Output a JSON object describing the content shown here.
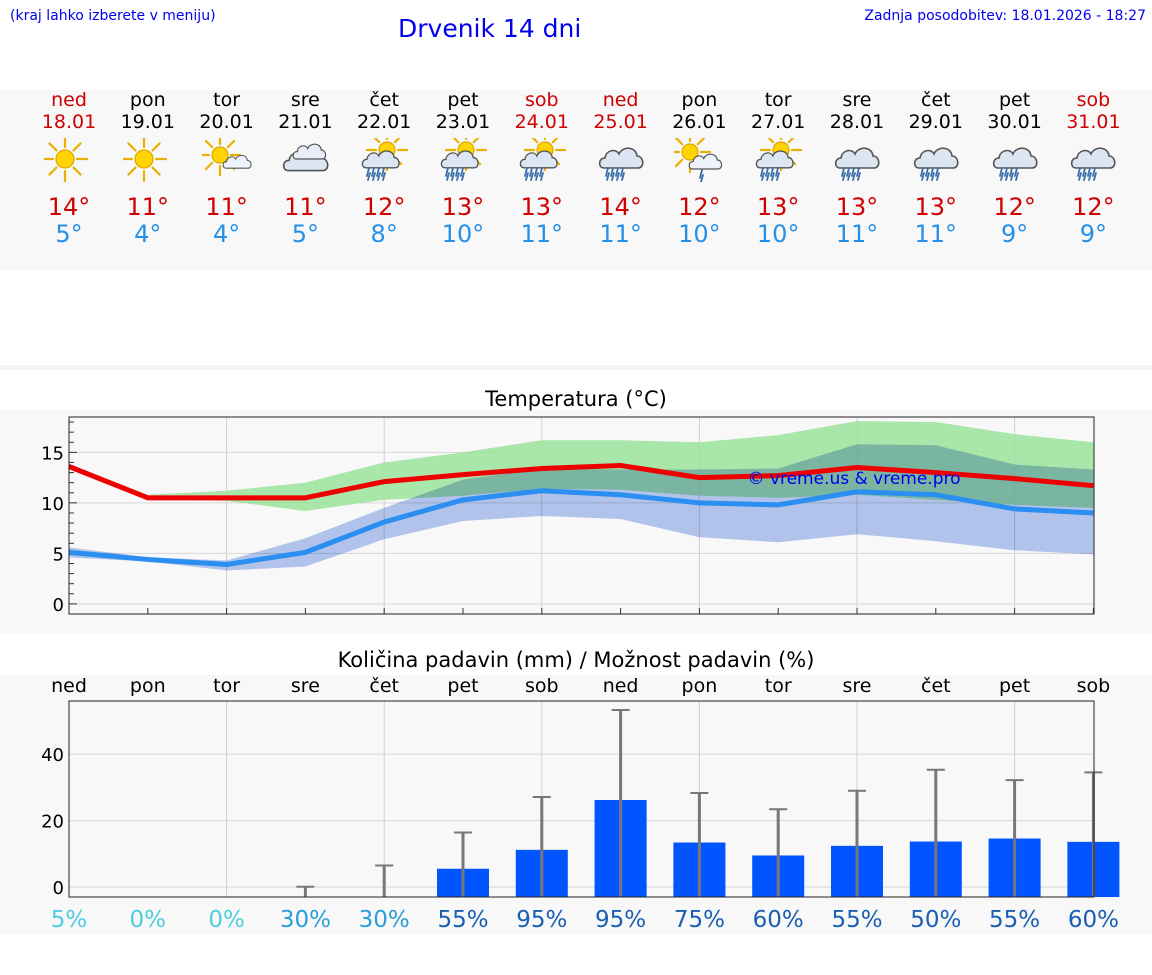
{
  "header": {
    "menu_hint": "(kraj lahko izberete v meniju)",
    "title": "Drvenik 14 dni",
    "updated": "Zadnja posodobitev: 18.01.2026 - 18:27"
  },
  "days": [
    {
      "name": "ned",
      "date": "18.01",
      "weekend": true,
      "icon": "sun-icon",
      "tmax": "14°",
      "tmin": "5°"
    },
    {
      "name": "pon",
      "date": "19.01",
      "weekend": false,
      "icon": "sun-icon",
      "tmax": "11°",
      "tmin": "4°"
    },
    {
      "name": "tor",
      "date": "20.01",
      "weekend": false,
      "icon": "sun-small-cloud-icon",
      "tmax": "11°",
      "tmin": "4°"
    },
    {
      "name": "sre",
      "date": "21.01",
      "weekend": false,
      "icon": "cloud-icon",
      "tmax": "11°",
      "tmin": "5°"
    },
    {
      "name": "čet",
      "date": "22.01",
      "weekend": false,
      "icon": "sun-cloud-rain-icon",
      "tmax": "12°",
      "tmin": "8°"
    },
    {
      "name": "pet",
      "date": "23.01",
      "weekend": false,
      "icon": "sun-cloud-rain-icon",
      "tmax": "13°",
      "tmin": "10°"
    },
    {
      "name": "sob",
      "date": "24.01",
      "weekend": true,
      "icon": "sun-cloud-rain-icon",
      "tmax": "13°",
      "tmin": "11°"
    },
    {
      "name": "ned",
      "date": "25.01",
      "weekend": true,
      "icon": "cloud-rain-icon",
      "tmax": "14°",
      "tmin": "11°"
    },
    {
      "name": "pon",
      "date": "26.01",
      "weekend": false,
      "icon": "sun-cloud-light-rain-icon",
      "tmax": "12°",
      "tmin": "10°"
    },
    {
      "name": "tor",
      "date": "27.01",
      "weekend": false,
      "icon": "sun-cloud-rain-icon",
      "tmax": "13°",
      "tmin": "10°"
    },
    {
      "name": "sre",
      "date": "28.01",
      "weekend": false,
      "icon": "cloud-rain-icon",
      "tmax": "13°",
      "tmin": "11°"
    },
    {
      "name": "čet",
      "date": "29.01",
      "weekend": false,
      "icon": "cloud-rain-icon",
      "tmax": "13°",
      "tmin": "11°"
    },
    {
      "name": "pet",
      "date": "30.01",
      "weekend": false,
      "icon": "cloud-rain-icon",
      "tmax": "12°",
      "tmin": "9°"
    },
    {
      "name": "sob",
      "date": "31.01",
      "weekend": true,
      "icon": "cloud-rain-icon",
      "tmax": "12°",
      "tmin": "9°"
    }
  ],
  "colors": {
    "max_line": "#ee0000",
    "min_line": "#2a8ff0",
    "max_band": "#9be39b",
    "min_band": "#9fb7ee",
    "bar": "#0055ff",
    "error": "#777777",
    "weekend": "#d00000",
    "tmin_text": "#2590e8"
  },
  "chart_data": [
    {
      "type": "line",
      "title": "Temperatura (°C)",
      "xlabel": "",
      "ylabel": "",
      "ylim": [
        -1,
        18.5
      ],
      "yticks": [
        0,
        5,
        10,
        15
      ],
      "watermark": "© vreme.us & vreme.pro",
      "x": [
        0,
        1,
        2,
        3,
        4,
        5,
        6,
        7,
        8,
        9,
        10,
        11,
        12,
        13
      ],
      "series": [
        {
          "name": "max",
          "values": [
            13.6,
            10.5,
            10.5,
            10.5,
            12.1,
            12.8,
            13.4,
            13.7,
            12.5,
            12.7,
            13.5,
            13.0,
            12.4,
            11.7
          ],
          "band_low": [
            13.4,
            10.4,
            10.2,
            9.2,
            10.3,
            10.7,
            11.4,
            11.3,
            10.7,
            10.5,
            10.8,
            10.3,
            9.8,
            9.5
          ],
          "band_high": [
            13.8,
            10.8,
            11.2,
            12.0,
            14.0,
            15.0,
            16.2,
            16.2,
            16.0,
            16.7,
            18.1,
            18.0,
            16.8,
            16.0
          ]
        },
        {
          "name": "min",
          "values": [
            5.1,
            4.4,
            3.9,
            5.1,
            8.1,
            10.3,
            11.2,
            10.8,
            10.0,
            9.8,
            11.1,
            10.8,
            9.4,
            9.0
          ],
          "band_low": [
            4.6,
            4.2,
            3.3,
            3.7,
            6.4,
            8.2,
            8.7,
            8.4,
            6.6,
            6.1,
            6.9,
            6.2,
            5.3,
            4.9
          ],
          "band_high": [
            5.6,
            4.6,
            4.3,
            6.5,
            9.5,
            12.3,
            13.4,
            13.3,
            13.3,
            13.4,
            15.8,
            15.7,
            13.8,
            13.3
          ]
        }
      ]
    },
    {
      "type": "bar",
      "title": "Količina padavin (mm) / Možnost padavin (%)",
      "categories": [
        "ned",
        "pon",
        "tor",
        "sre",
        "čet",
        "pet",
        "sob",
        "ned",
        "pon",
        "tor",
        "sre",
        "čet",
        "pet",
        "sob"
      ],
      "ylim": [
        -3,
        56
      ],
      "yticks": [
        0,
        20,
        40
      ],
      "values": [
        0,
        0,
        0,
        0,
        0,
        5.5,
        11.2,
        26.2,
        13.4,
        9.5,
        12.4,
        13.7,
        14.6,
        13.6
      ],
      "error_high": [
        0,
        0,
        0,
        0.1,
        6.5,
        16.4,
        27.1,
        53.3,
        28.3,
        23.4,
        29.0,
        35.3,
        32.2,
        34.5
      ],
      "probability": [
        "5%",
        "0%",
        "0%",
        "30%",
        "30%",
        "55%",
        "95%",
        "95%",
        "75%",
        "60%",
        "55%",
        "50%",
        "55%",
        "60%"
      ]
    }
  ]
}
